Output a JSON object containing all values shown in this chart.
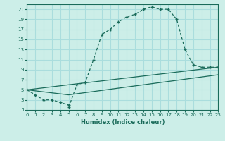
{
  "bg_color": "#cceee8",
  "grid_color": "#aadddd",
  "line_color": "#1a6b5a",
  "xlabel": "Humidex (Indice chaleur)",
  "xlim": [
    0,
    23
  ],
  "ylim": [
    1,
    22
  ],
  "xticks": [
    0,
    1,
    2,
    3,
    4,
    5,
    6,
    7,
    8,
    9,
    10,
    11,
    12,
    13,
    14,
    15,
    16,
    17,
    18,
    19,
    20,
    21,
    22,
    23
  ],
  "yticks": [
    1,
    3,
    5,
    7,
    9,
    11,
    13,
    15,
    17,
    19,
    21
  ],
  "curve1_x": [
    0,
    1,
    2,
    3,
    4,
    5,
    5,
    6,
    7,
    8,
    9,
    10,
    11,
    12,
    13,
    14,
    15,
    16,
    17,
    18,
    19,
    20,
    21,
    22,
    23
  ],
  "curve1_y": [
    5,
    4,
    3,
    3,
    2.5,
    2,
    1.5,
    6,
    6.5,
    11,
    16,
    17,
    18.5,
    19.5,
    20,
    21,
    21.5,
    21,
    21,
    19,
    13,
    10,
    9.5,
    9.5,
    9.5
  ],
  "curve2_x": [
    0,
    5,
    23
  ],
  "curve2_y": [
    5,
    6,
    9.5
  ],
  "curve3_x": [
    0,
    5,
    23
  ],
  "curve3_y": [
    5,
    4,
    8
  ],
  "marker": "+"
}
